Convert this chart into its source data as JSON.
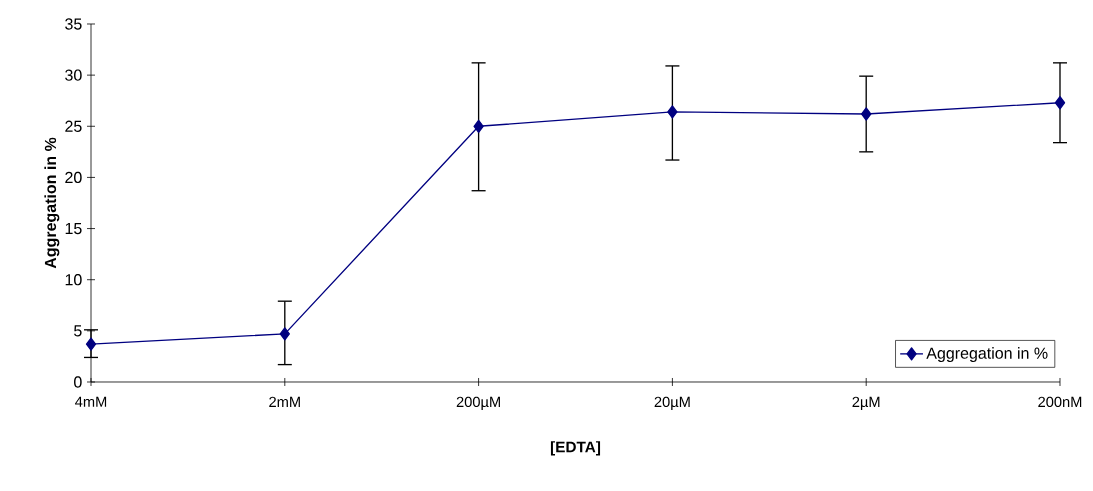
{
  "chart_data": {
    "type": "line",
    "xlabel": "[EDTA]",
    "ylabel": "Aggregation in %",
    "categories": [
      "4mM",
      "2mM",
      "200µM",
      "20µM",
      "2µM",
      "200nM"
    ],
    "series": [
      {
        "name": "Aggregation in %",
        "color": "#000080",
        "values": [
          3.7,
          4.7,
          25.0,
          26.4,
          26.2,
          27.3
        ],
        "errors": [
          [
            2.4,
            5.1
          ],
          [
            1.7,
            7.9
          ],
          [
            18.7,
            31.2
          ],
          [
            21.7,
            30.9
          ],
          [
            22.5,
            29.9
          ],
          [
            23.4,
            31.2
          ]
        ]
      }
    ],
    "ylim": [
      0,
      35
    ],
    "yticks": [
      0,
      5,
      10,
      15,
      20,
      25,
      30,
      35
    ],
    "legend": "bottom right",
    "marker": "diamond"
  }
}
